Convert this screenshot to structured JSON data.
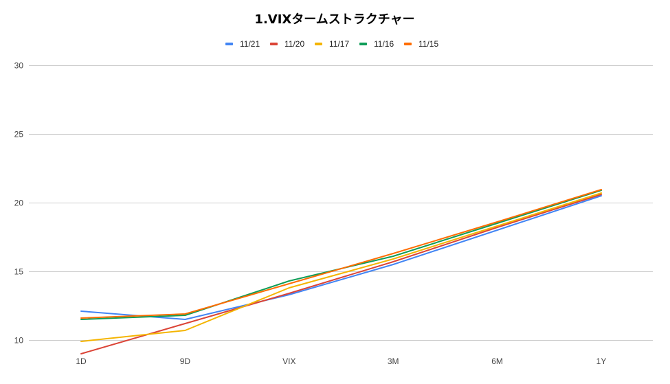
{
  "chart_data": {
    "type": "line",
    "title": "1.VIXタームストラクチャー",
    "xlabel": "",
    "ylabel": "",
    "categories": [
      "1D",
      "9D",
      "VIX",
      "3M",
      "6M",
      "1Y"
    ],
    "ylim": [
      9,
      30
    ],
    "yticks": [
      10,
      15,
      20,
      25,
      30
    ],
    "grid": true,
    "legend_position": "top",
    "series": [
      {
        "name": "11/21",
        "color": "#4285f4",
        "values": [
          12.1,
          11.5,
          13.3,
          15.5,
          18.0,
          20.5
        ]
      },
      {
        "name": "11/20",
        "color": "#db4437",
        "values": [
          9.0,
          11.2,
          13.4,
          15.7,
          18.2,
          20.6
        ]
      },
      {
        "name": "11/17",
        "color": "#f4b400",
        "values": [
          9.9,
          10.7,
          13.8,
          15.9,
          18.3,
          20.7
        ]
      },
      {
        "name": "11/16",
        "color": "#0f9d58",
        "values": [
          11.5,
          11.8,
          14.3,
          16.1,
          18.5,
          20.9
        ]
      },
      {
        "name": "11/15",
        "color": "#ff6d01",
        "values": [
          11.6,
          11.9,
          14.1,
          16.3,
          18.6,
          20.95
        ]
      }
    ]
  }
}
